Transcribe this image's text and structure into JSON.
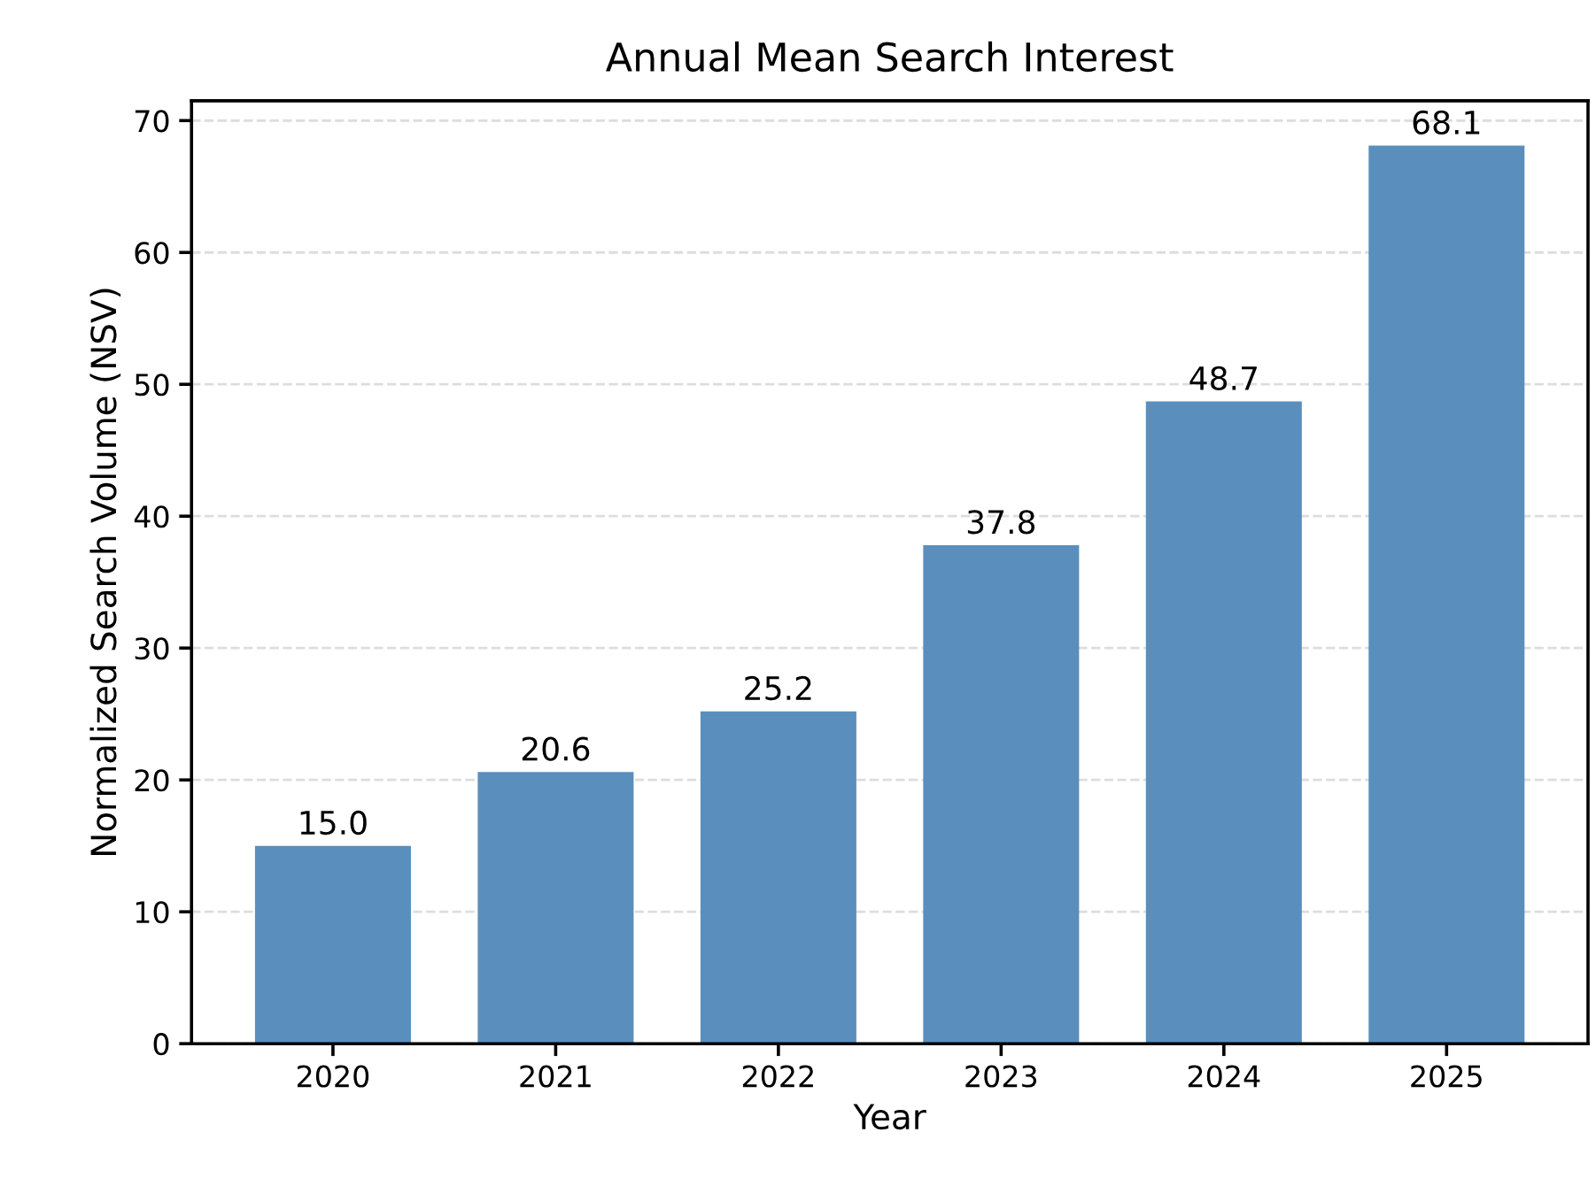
{
  "chart_data": {
    "type": "bar",
    "title": "Annual Mean Search Interest",
    "xlabel": "Year",
    "ylabel": "Normalized Search Volume (NSV)",
    "categories": [
      "2020",
      "2021",
      "2022",
      "2023",
      "2024",
      "2025"
    ],
    "values": [
      15.0,
      20.6,
      25.2,
      37.8,
      48.7,
      68.1
    ],
    "value_labels": [
      "15.0",
      "20.6",
      "25.2",
      "37.8",
      "48.7",
      "68.1"
    ],
    "color": "#5a8fbd",
    "ylim": [
      0,
      71.5
    ],
    "yticks": [
      0,
      10,
      20,
      30,
      40,
      50,
      60,
      70
    ],
    "grid": "y"
  }
}
